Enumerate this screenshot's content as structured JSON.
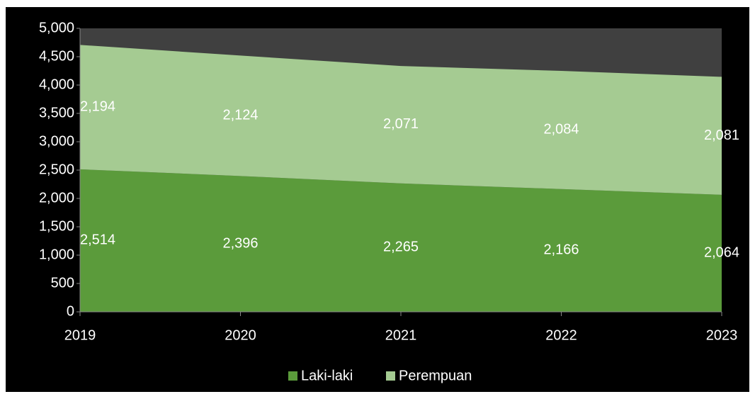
{
  "chart_data": {
    "type": "stacked_area",
    "categories": [
      "2019",
      "2020",
      "2021",
      "2022",
      "2023"
    ],
    "series": [
      {
        "name": "Laki-laki",
        "color": "#5b9b3b",
        "values": [
          2514,
          2396,
          2265,
          2166,
          2064
        ],
        "value_labels": [
          "2,514",
          "2,396",
          "2,265",
          "2,166",
          "2,064"
        ]
      },
      {
        "name": "Perempuan",
        "color": "#a5cb92",
        "values": [
          2194,
          2124,
          2071,
          2084,
          2081
        ],
        "value_labels": [
          "2,194",
          "2,124",
          "2,071",
          "2,084",
          "2,081"
        ]
      }
    ],
    "ylim": [
      0,
      5000
    ],
    "yticks": [
      0,
      500,
      {
        "value": 1000,
        "label": "1,000"
      },
      {
        "value": 1500,
        "label": "1,500"
      },
      {
        "value": 2000,
        "label": "2,000"
      },
      {
        "value": 2500,
        "label": "2,500"
      },
      {
        "value": 3000,
        "label": "3,000"
      },
      {
        "value": 3500,
        "label": "3,500"
      },
      {
        "value": 4000,
        "label": "4,000"
      },
      {
        "value": 4500,
        "label": "4,500"
      },
      {
        "value": 5000,
        "label": "5,000"
      }
    ],
    "legend": "bottom"
  }
}
